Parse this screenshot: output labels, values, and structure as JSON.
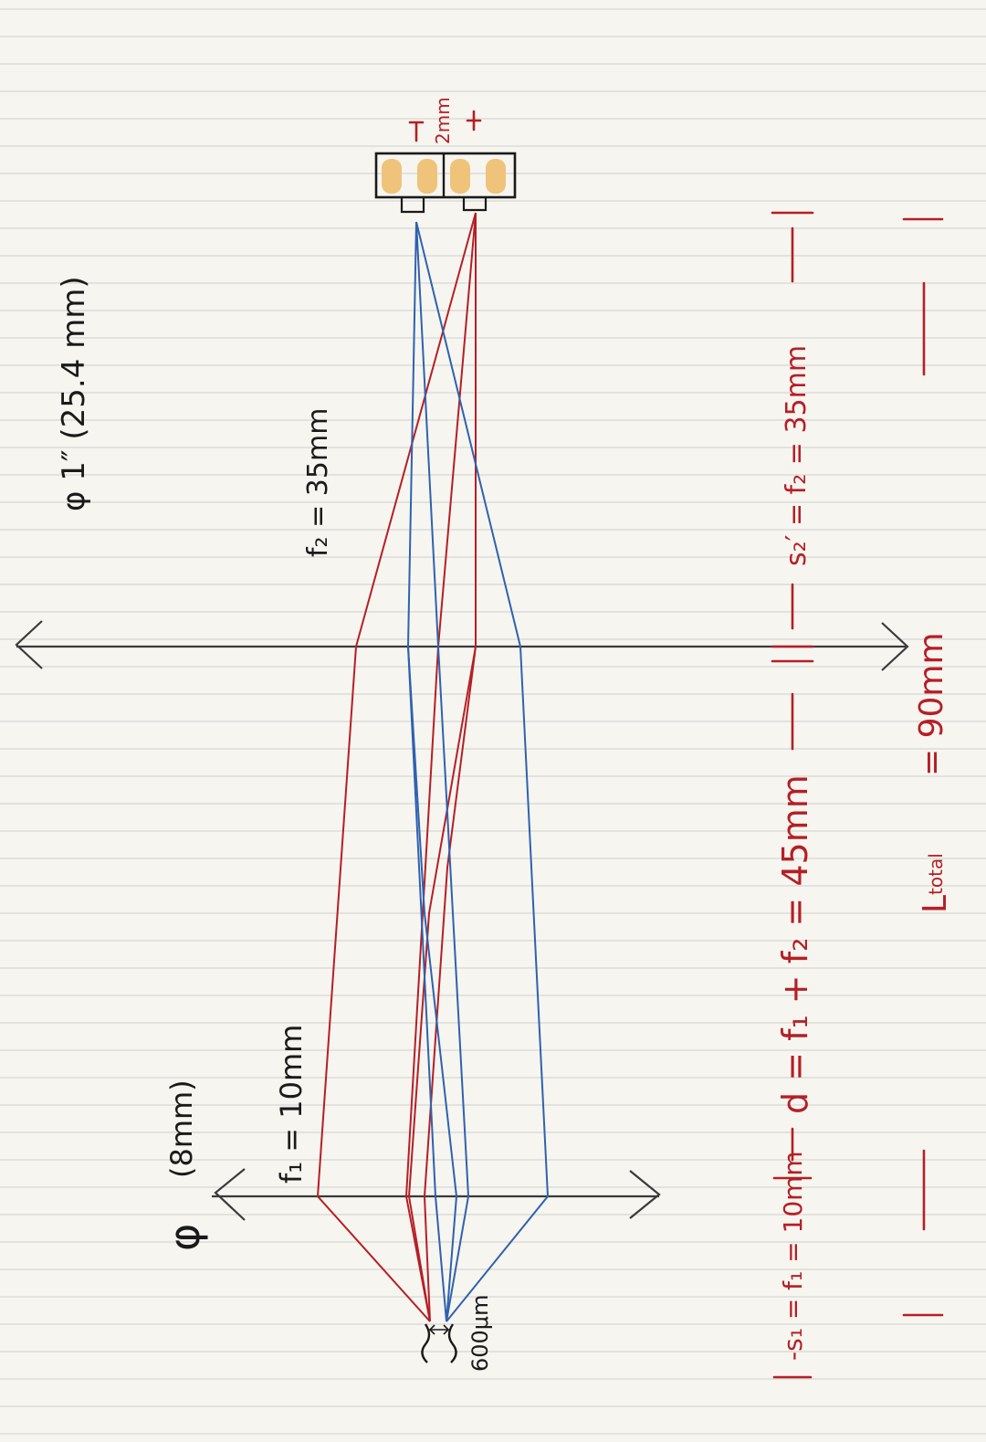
{
  "lens1": {
    "diameter": "(8mm)",
    "focal": "f₁ = 10mm"
  },
  "lens2": {
    "diameter": "1″ (25.4 mm)",
    "focal": "f₂ = 35mm"
  },
  "source": {
    "size": "600μm"
  },
  "detector": {
    "pitch": "2mm"
  },
  "dimensions": {
    "s1": "-s₁ = f₁ = 10mm",
    "d": "d = f₁ + f₂ = 45mm",
    "s2": "s₂′ = f₂ = 35mm",
    "total_label": "L",
    "total_sub": "total",
    "total_value": "= 90mm"
  },
  "colors": {
    "paper": "#f6f5f0",
    "rule": "#d6d6d2",
    "ray_red": "#b51f25",
    "ray_blue": "#2f62ad",
    "axis": "#3a3a3a",
    "detector_fill": "#f0c37a"
  }
}
